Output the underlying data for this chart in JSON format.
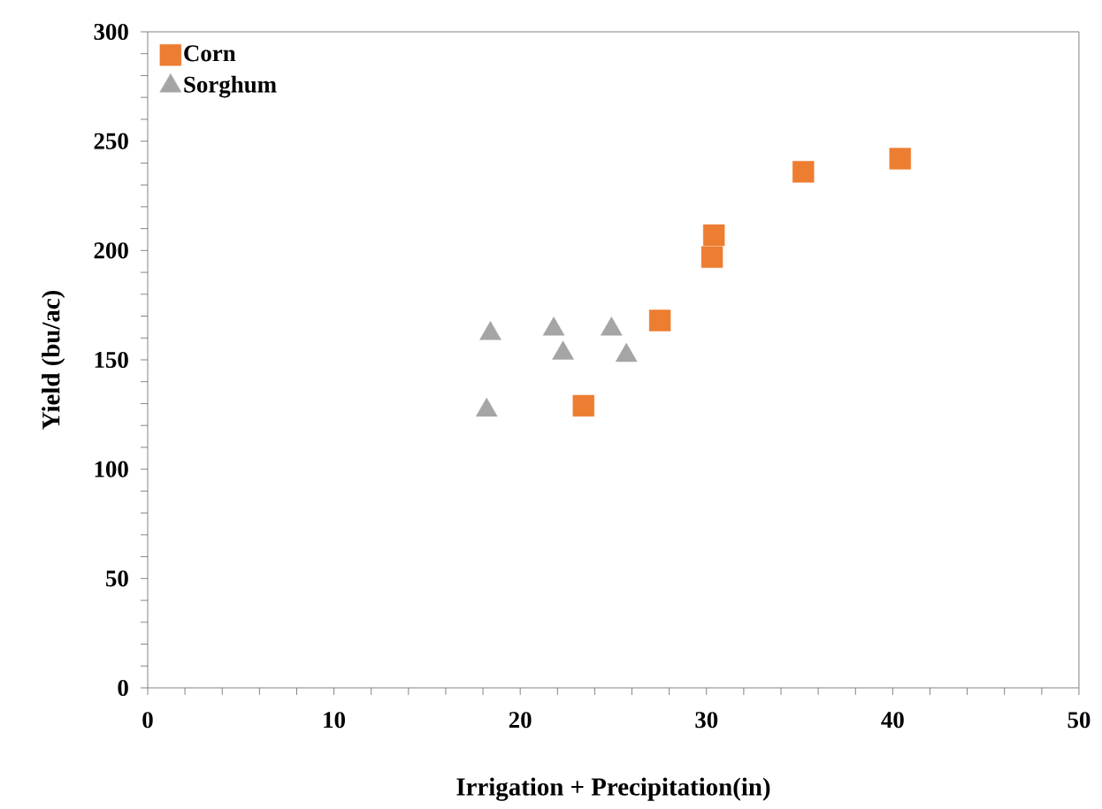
{
  "chart_data": {
    "type": "scatter",
    "xlabel": "Irrigation + Precipitation(in)",
    "ylabel": "Yield (bu/ac)",
    "xlim": [
      0,
      50
    ],
    "ylim": [
      0,
      300
    ],
    "xticks": [
      0,
      10,
      20,
      30,
      40,
      50
    ],
    "yticks": [
      0,
      50,
      100,
      150,
      200,
      250,
      300
    ],
    "grid": false,
    "legend": "top left",
    "series": [
      {
        "name": "Corn",
        "color": "#ed7d31",
        "marker": "square",
        "x": [
          23.4,
          27.5,
          30.3,
          30.4,
          35.2,
          40.4
        ],
        "values": [
          129,
          168,
          197,
          207,
          236,
          242
        ]
      },
      {
        "name": "Sorghum",
        "color": "#a5a5a5",
        "marker": "triangle",
        "x": [
          18.2,
          18.4,
          21.8,
          22.3,
          24.9,
          25.7
        ],
        "values": [
          127,
          162,
          164,
          153,
          164,
          152
        ]
      }
    ]
  }
}
